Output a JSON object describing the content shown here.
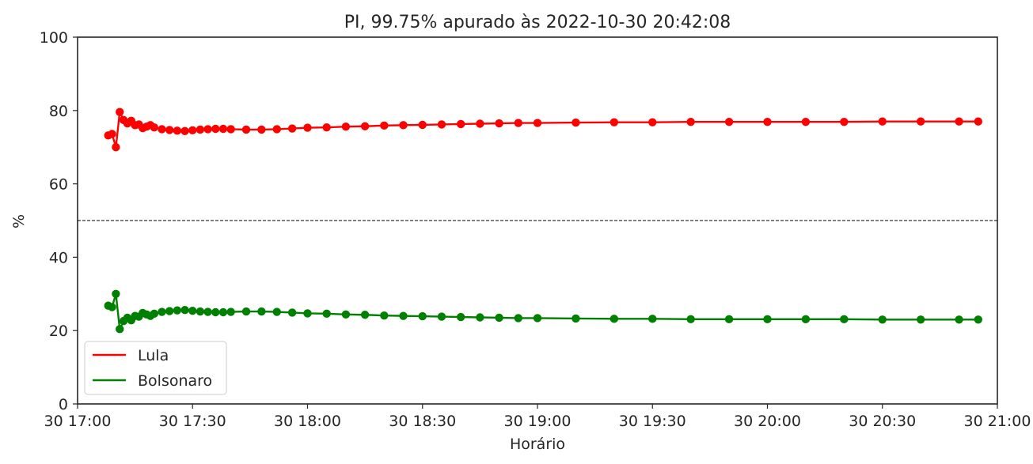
{
  "chart_data": {
    "type": "line",
    "title": "PI, 99.75% apurado às 2022-10-30 20:42:08",
    "xlabel": "Horário",
    "ylabel": "%",
    "ylim": [
      0,
      100
    ],
    "xlim": [
      "17:00",
      "21:00"
    ],
    "y_ticks": [
      0,
      20,
      40,
      60,
      80,
      100
    ],
    "x_ticks": [
      {
        "value": "17:00",
        "label": "30 17:00"
      },
      {
        "value": "17:30",
        "label": "30 17:30"
      },
      {
        "value": "18:00",
        "label": "30 18:00"
      },
      {
        "value": "18:30",
        "label": "30 18:30"
      },
      {
        "value": "19:00",
        "label": "30 19:00"
      },
      {
        "value": "19:30",
        "label": "30 19:30"
      },
      {
        "value": "20:00",
        "label": "30 20:00"
      },
      {
        "value": "20:30",
        "label": "30 20:30"
      },
      {
        "value": "21:00",
        "label": "30 21:00"
      }
    ],
    "reference_line": {
      "y": 50,
      "style": "dashed"
    },
    "grid": false,
    "legend_position": "lower-left",
    "x": [
      "17:08",
      "17:09",
      "17:10",
      "17:11",
      "17:12",
      "17:13",
      "17:14",
      "17:15",
      "17:16",
      "17:17",
      "17:18",
      "17:19",
      "17:20",
      "17:22",
      "17:24",
      "17:26",
      "17:28",
      "17:30",
      "17:32",
      "17:34",
      "17:36",
      "17:38",
      "17:40",
      "17:44",
      "17:48",
      "17:52",
      "17:56",
      "18:00",
      "18:05",
      "18:10",
      "18:15",
      "18:20",
      "18:25",
      "18:30",
      "18:35",
      "18:40",
      "18:45",
      "18:50",
      "18:55",
      "19:00",
      "19:10",
      "19:20",
      "19:30",
      "19:40",
      "19:50",
      "20:00",
      "20:10",
      "20:20",
      "20:30",
      "20:40",
      "20:50",
      "20:55"
    ],
    "series": [
      {
        "name": "Lula",
        "color": "#ff0000",
        "values": [
          73.2,
          73.6,
          70.0,
          79.6,
          77.4,
          76.5,
          77.2,
          76.0,
          76.2,
          75.2,
          75.6,
          76.0,
          75.4,
          74.9,
          74.7,
          74.5,
          74.4,
          74.6,
          74.8,
          74.9,
          75.0,
          75.0,
          74.9,
          74.8,
          74.8,
          74.9,
          75.1,
          75.3,
          75.4,
          75.6,
          75.7,
          75.9,
          76.0,
          76.1,
          76.2,
          76.3,
          76.4,
          76.5,
          76.6,
          76.6,
          76.7,
          76.8,
          76.8,
          76.9,
          76.9,
          76.9,
          76.9,
          76.9,
          77.0,
          77.0,
          77.0,
          77.0
        ]
      },
      {
        "name": "Bolsonaro",
        "color": "#008000",
        "values": [
          26.8,
          26.4,
          30.0,
          20.4,
          22.6,
          23.5,
          22.8,
          24.0,
          23.8,
          24.8,
          24.4,
          24.0,
          24.6,
          25.1,
          25.3,
          25.5,
          25.6,
          25.4,
          25.2,
          25.1,
          25.0,
          25.0,
          25.1,
          25.2,
          25.2,
          25.1,
          24.9,
          24.7,
          24.6,
          24.4,
          24.3,
          24.1,
          24.0,
          23.9,
          23.8,
          23.7,
          23.6,
          23.5,
          23.4,
          23.4,
          23.3,
          23.2,
          23.2,
          23.1,
          23.1,
          23.1,
          23.1,
          23.1,
          23.0,
          23.0,
          23.0,
          23.0
        ]
      }
    ]
  }
}
